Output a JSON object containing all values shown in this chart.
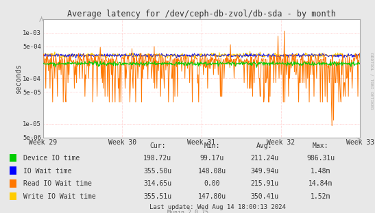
{
  "title": "Average latency for /dev/ceph-db-zvol/db-sda - by month",
  "ylabel": "seconds",
  "xlabel_ticks": [
    "Week 29",
    "Week 30",
    "Week 31",
    "Week 32",
    "Week 33"
  ],
  "ylim_min": 5e-06,
  "ylim_max": 0.002,
  "bg_color": "#e8e8e8",
  "plot_bg_color": "#ffffff",
  "grid_color": "#ffaaaa",
  "n_points": 600,
  "device_io_color": "#00cc00",
  "io_wait_color": "#0000ff",
  "read_io_color": "#ff7700",
  "write_io_color": "#ffcc00",
  "legend_entries": [
    {
      "label": "Device IO time",
      "color": "#00cc00"
    },
    {
      "label": "IO Wait time",
      "color": "#0000ff"
    },
    {
      "label": "Read IO Wait time",
      "color": "#ff7700"
    },
    {
      "label": "Write IO Wait time",
      "color": "#ffcc00"
    }
  ],
  "stats": {
    "headers": [
      "Cur:",
      "Min:",
      "Avg:",
      "Max:"
    ],
    "rows": [
      [
        "198.72u",
        "99.17u",
        "211.24u",
        "986.31u"
      ],
      [
        "355.50u",
        "148.08u",
        "349.94u",
        "1.48m"
      ],
      [
        "314.65u",
        "0.00",
        "215.91u",
        "14.84m"
      ],
      [
        "355.51u",
        "147.80u",
        "350.41u",
        "1.52m"
      ]
    ]
  },
  "last_update": "Last update: Wed Aug 14 18:00:13 2024",
  "munin_version": "Munin 2.0.75",
  "rrdtool_label": "RRDTOOL / TOBI OETIKER"
}
